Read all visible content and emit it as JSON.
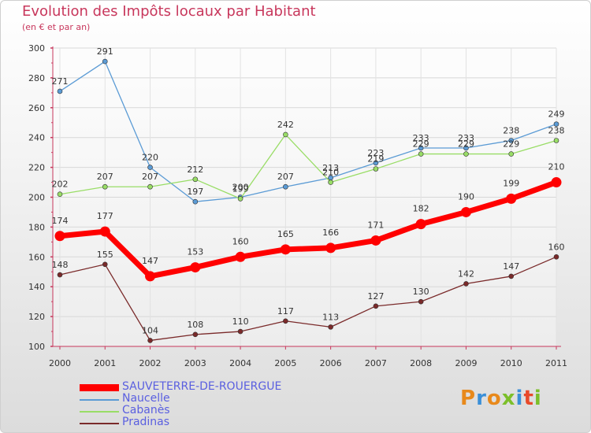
{
  "chart_data": {
    "type": "line",
    "title": "Evolution des Impôts locaux par Habitant",
    "subtitle": "(en € et par an)",
    "x": [
      "2000",
      "2001",
      "2002",
      "2003",
      "2004",
      "2005",
      "2006",
      "2007",
      "2008",
      "2009",
      "2010",
      "2011"
    ],
    "ylim": [
      100,
      300
    ],
    "yticks": [
      100,
      120,
      140,
      160,
      180,
      200,
      220,
      240,
      260,
      280,
      300
    ],
    "grid": true,
    "series": [
      {
        "name": "SAUVETERRE-DE-ROUERGUE",
        "color": "#ff0000",
        "values": [
          174,
          177,
          147,
          153,
          160,
          165,
          166,
          171,
          182,
          190,
          199,
          210
        ]
      },
      {
        "name": "Naucelle",
        "color": "#5b9bd5",
        "values": [
          271,
          291,
          220,
          197,
          200,
          207,
          213,
          223,
          233,
          233,
          238,
          249
        ]
      },
      {
        "name": "Cabanès",
        "color": "#99dd66",
        "values": [
          202,
          207,
          207,
          212,
          199,
          242,
          210,
          219,
          229,
          229,
          229,
          238
        ]
      },
      {
        "name": "Pradinas",
        "color": "#7a2a2a",
        "values": [
          148,
          155,
          104,
          108,
          110,
          117,
          113,
          127,
          130,
          142,
          147,
          160
        ]
      }
    ],
    "legend_position": "bottom-left"
  },
  "brand": {
    "logo_text": "Proxiti",
    "logo_colors": [
      "#e8891b",
      "#3a8fd8",
      "#e8891b",
      "#7cbf2a",
      "#3a8fd8",
      "#e84a2a",
      "#7cbf2a"
    ]
  }
}
